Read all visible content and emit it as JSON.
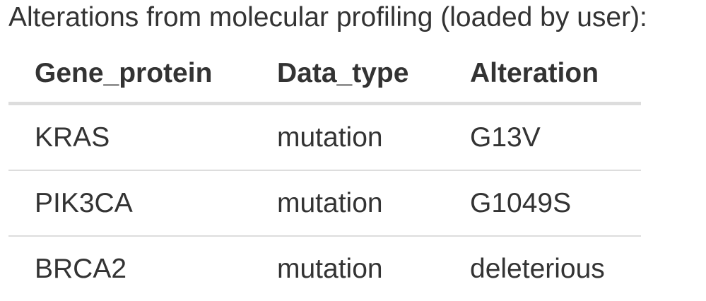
{
  "caption": "Alterations from molecular profiling (loaded by user):",
  "table": {
    "headers": [
      "Gene_protein",
      "Data_type",
      "Alteration"
    ],
    "rows": [
      [
        "KRAS",
        "mutation",
        "G13V"
      ],
      [
        "PIK3CA",
        "mutation",
        "G1049S"
      ],
      [
        "BRCA2",
        "mutation",
        "deleterious"
      ]
    ]
  }
}
